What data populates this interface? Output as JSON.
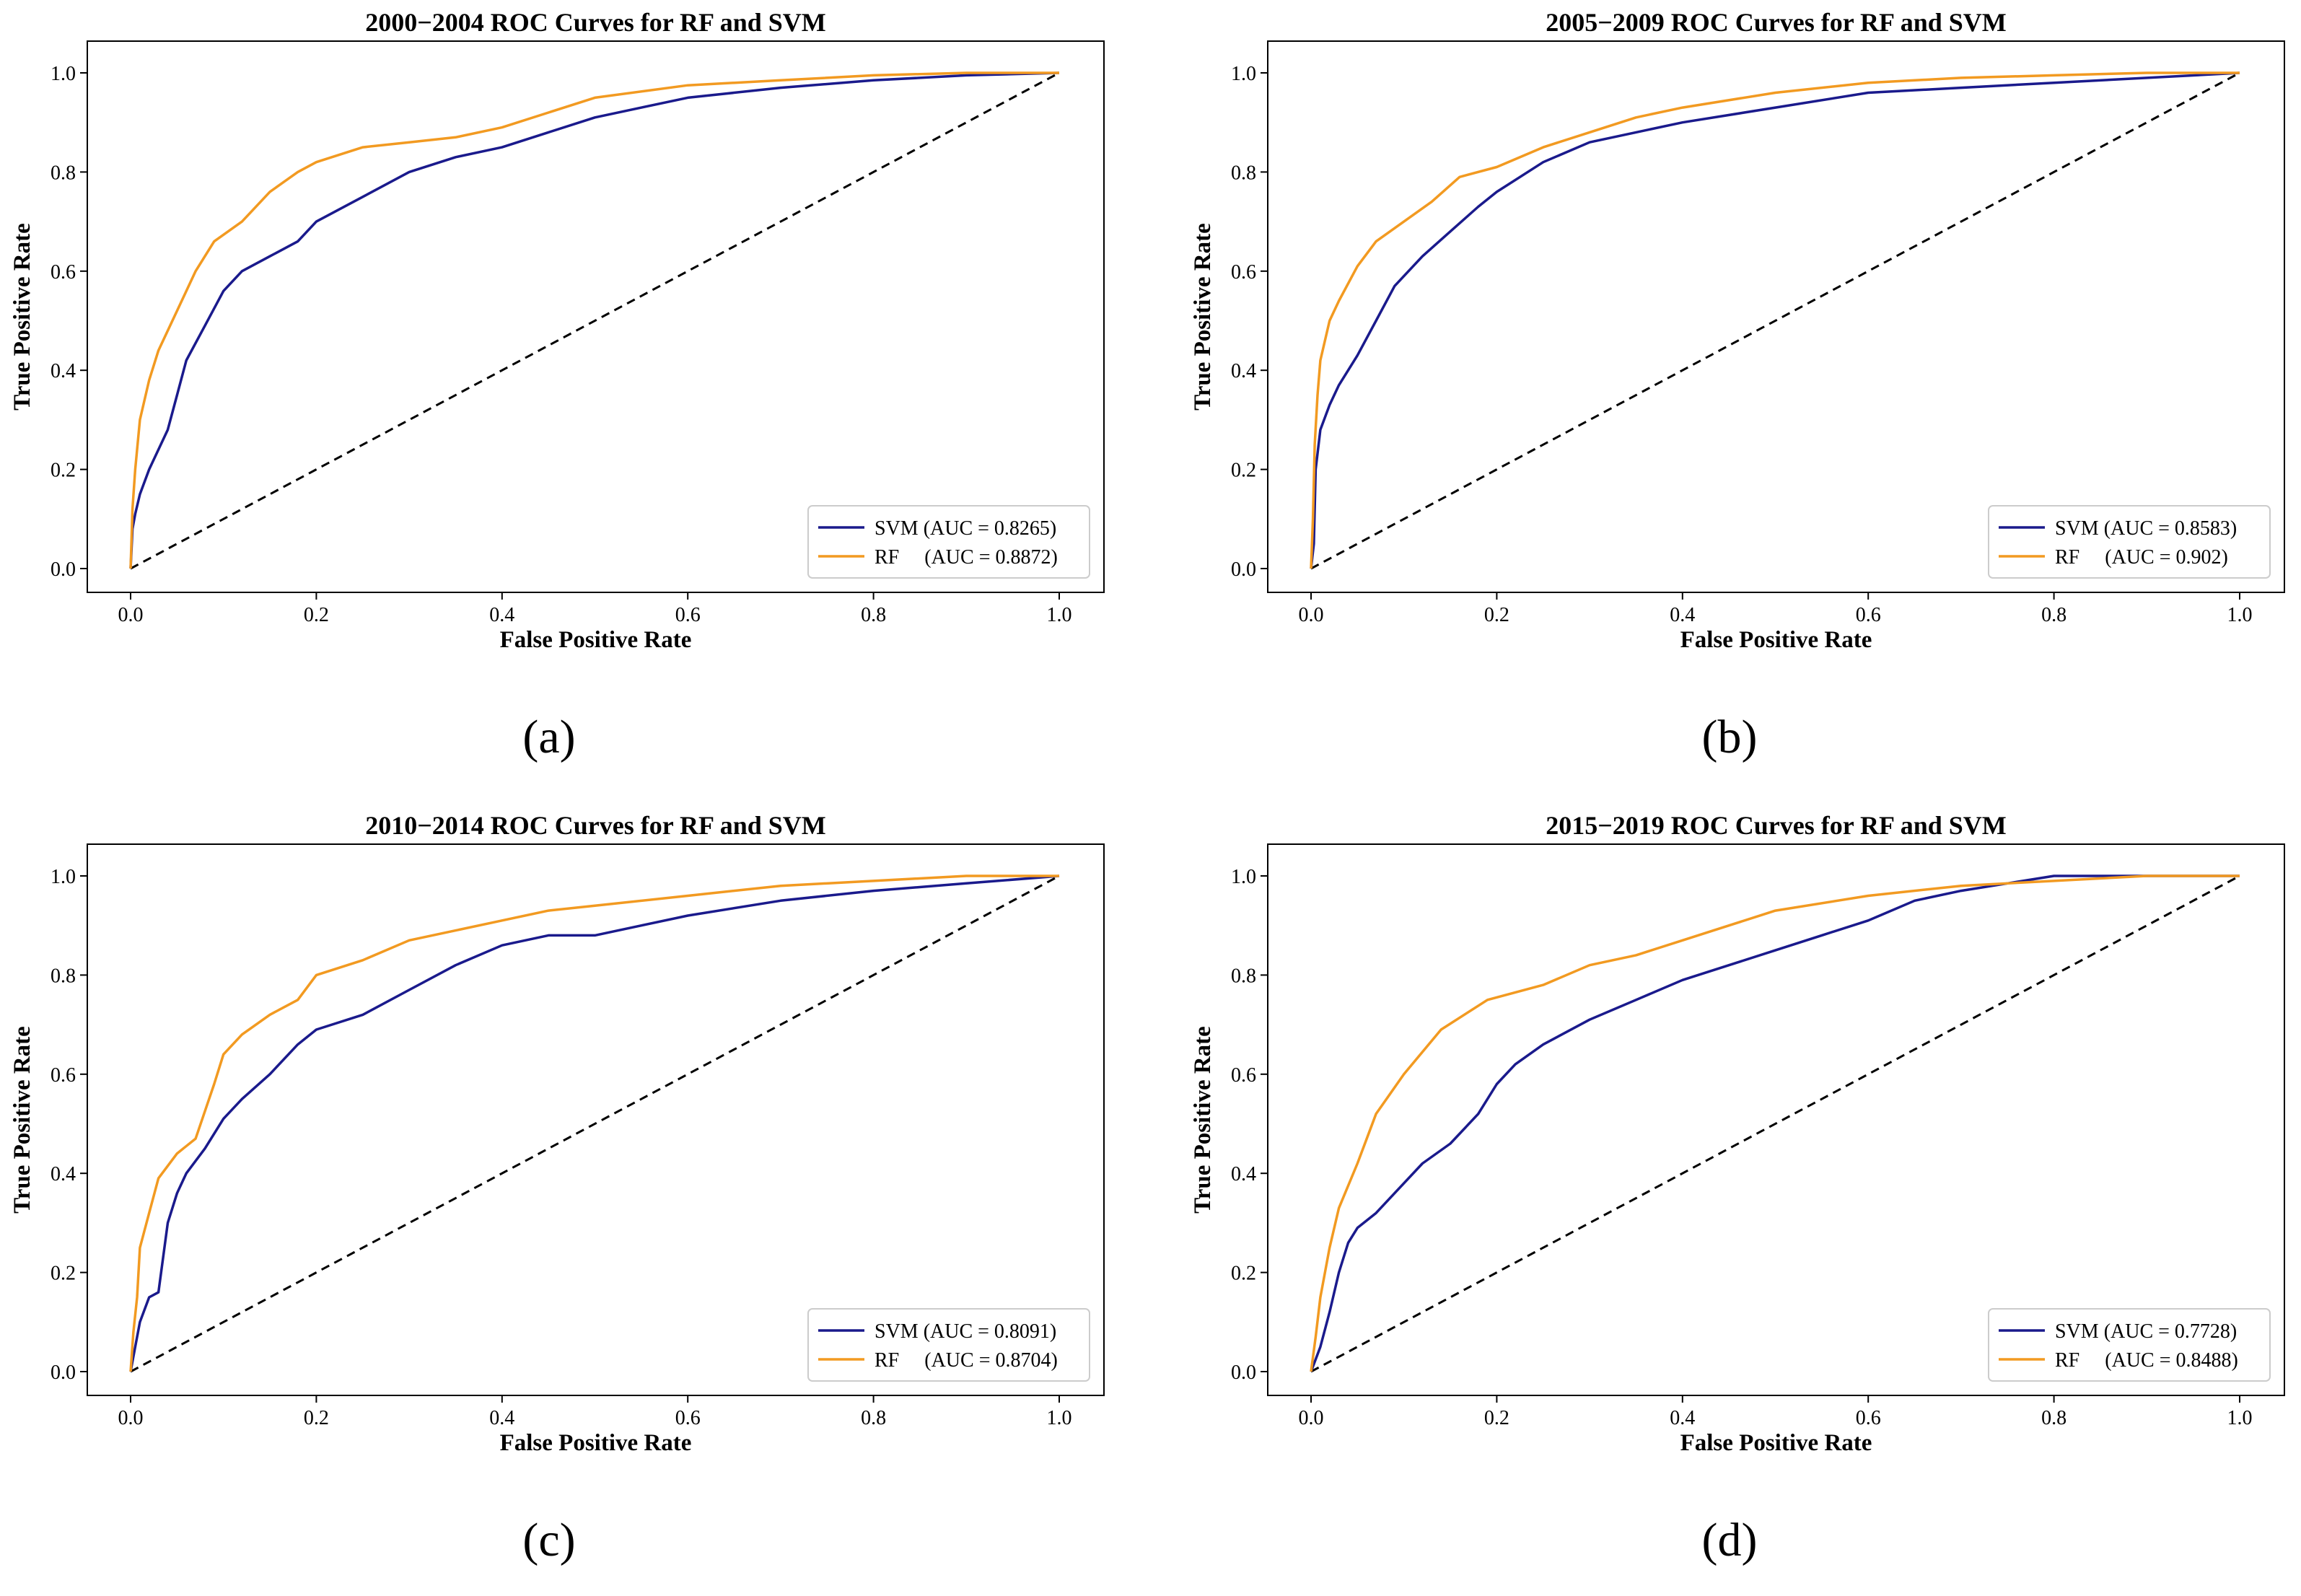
{
  "colors": {
    "svm": "#1a1a8c",
    "rf": "#f29a21",
    "chance": "#000000"
  },
  "chart_data": [
    {
      "type": "line",
      "caption": "(a)",
      "title": "2000−2004 ROC Curves for RF and SVM",
      "xlabel": "False Positive Rate",
      "ylabel": "True Positive Rate",
      "xlim": [
        0,
        1
      ],
      "ylim": [
        0,
        1
      ],
      "xticks": [
        "0.0",
        "0.2",
        "0.4",
        "0.6",
        "0.8",
        "1.0"
      ],
      "yticks": [
        "0.0",
        "0.2",
        "0.4",
        "0.6",
        "0.8",
        "1.0"
      ],
      "legend_position": "lower-right",
      "series": [
        {
          "name": "SVM",
          "legend_label": "SVM (AUC = 0.8265)",
          "auc": 0.8265,
          "x": [
            0,
            0.002,
            0.005,
            0.01,
            0.02,
            0.03,
            0.04,
            0.05,
            0.06,
            0.08,
            0.1,
            0.12,
            0.15,
            0.18,
            0.2,
            0.25,
            0.3,
            0.35,
            0.4,
            0.45,
            0.5,
            0.55,
            0.6,
            0.7,
            0.8,
            0.9,
            1.0
          ],
          "y": [
            0,
            0.08,
            0.11,
            0.15,
            0.2,
            0.24,
            0.28,
            0.35,
            0.42,
            0.49,
            0.56,
            0.6,
            0.63,
            0.66,
            0.7,
            0.75,
            0.8,
            0.83,
            0.85,
            0.88,
            0.91,
            0.93,
            0.95,
            0.97,
            0.985,
            0.995,
            1.0
          ]
        },
        {
          "name": "RF",
          "legend_label": "RF     (AUC = 0.8872)",
          "auc": 0.8872,
          "x": [
            0,
            0.002,
            0.005,
            0.01,
            0.02,
            0.03,
            0.05,
            0.07,
            0.09,
            0.12,
            0.15,
            0.18,
            0.2,
            0.25,
            0.3,
            0.35,
            0.4,
            0.45,
            0.5,
            0.6,
            0.7,
            0.8,
            0.9,
            1.0
          ],
          "y": [
            0,
            0.12,
            0.2,
            0.3,
            0.38,
            0.44,
            0.52,
            0.6,
            0.66,
            0.7,
            0.76,
            0.8,
            0.82,
            0.85,
            0.86,
            0.87,
            0.89,
            0.92,
            0.95,
            0.975,
            0.985,
            0.995,
            1.0,
            1.0
          ]
        }
      ]
    },
    {
      "type": "line",
      "caption": "(b)",
      "title": "2005−2009 ROC Curves for RF and SVM",
      "xlabel": "False Positive Rate",
      "ylabel": "True Positive Rate",
      "xlim": [
        0,
        1
      ],
      "ylim": [
        0,
        1
      ],
      "xticks": [
        "0.0",
        "0.2",
        "0.4",
        "0.6",
        "0.8",
        "1.0"
      ],
      "yticks": [
        "0.0",
        "0.2",
        "0.4",
        "0.6",
        "0.8",
        "1.0"
      ],
      "legend_position": "lower-right",
      "series": [
        {
          "name": "SVM",
          "legend_label": "SVM (AUC = 0.8583)",
          "auc": 0.8583,
          "x": [
            0,
            0.003,
            0.005,
            0.01,
            0.02,
            0.03,
            0.05,
            0.07,
            0.09,
            0.12,
            0.15,
            0.18,
            0.2,
            0.25,
            0.3,
            0.35,
            0.4,
            0.5,
            0.6,
            0.7,
            0.8,
            0.9,
            1.0
          ],
          "y": [
            0,
            0.05,
            0.2,
            0.28,
            0.33,
            0.37,
            0.43,
            0.5,
            0.57,
            0.63,
            0.68,
            0.73,
            0.76,
            0.82,
            0.86,
            0.88,
            0.9,
            0.93,
            0.96,
            0.97,
            0.98,
            0.99,
            1.0
          ]
        },
        {
          "name": "RF",
          "legend_label": "RF     (AUC = 0.902)",
          "auc": 0.902,
          "x": [
            0,
            0.002,
            0.004,
            0.007,
            0.01,
            0.02,
            0.03,
            0.05,
            0.07,
            0.1,
            0.13,
            0.16,
            0.2,
            0.25,
            0.3,
            0.35,
            0.4,
            0.5,
            0.6,
            0.7,
            0.8,
            0.9,
            1.0
          ],
          "y": [
            0,
            0.1,
            0.25,
            0.35,
            0.42,
            0.5,
            0.54,
            0.61,
            0.66,
            0.7,
            0.74,
            0.79,
            0.81,
            0.85,
            0.88,
            0.91,
            0.93,
            0.96,
            0.98,
            0.99,
            0.995,
            1.0,
            1.0
          ]
        }
      ]
    },
    {
      "type": "line",
      "caption": "(c)",
      "title": "2010−2014 ROC Curves for RF and SVM",
      "xlabel": "False Positive Rate",
      "ylabel": "True Positive Rate",
      "xlim": [
        0,
        1
      ],
      "ylim": [
        0,
        1
      ],
      "xticks": [
        "0.0",
        "0.2",
        "0.4",
        "0.6",
        "0.8",
        "1.0"
      ],
      "yticks": [
        "0.0",
        "0.2",
        "0.4",
        "0.6",
        "0.8",
        "1.0"
      ],
      "legend_position": "lower-right",
      "series": [
        {
          "name": "SVM",
          "legend_label": "SVM (AUC = 0.8091)",
          "auc": 0.8091,
          "x": [
            0,
            0.005,
            0.01,
            0.02,
            0.03,
            0.04,
            0.05,
            0.06,
            0.08,
            0.1,
            0.12,
            0.15,
            0.18,
            0.2,
            0.25,
            0.3,
            0.35,
            0.4,
            0.45,
            0.5,
            0.55,
            0.6,
            0.7,
            0.8,
            0.9,
            1.0
          ],
          "y": [
            0,
            0.05,
            0.1,
            0.15,
            0.16,
            0.3,
            0.36,
            0.4,
            0.45,
            0.51,
            0.55,
            0.6,
            0.66,
            0.69,
            0.72,
            0.77,
            0.82,
            0.86,
            0.88,
            0.88,
            0.9,
            0.92,
            0.95,
            0.97,
            0.985,
            1.0
          ]
        },
        {
          "name": "RF",
          "legend_label": "RF     (AUC = 0.8704)",
          "auc": 0.8704,
          "x": [
            0,
            0.003,
            0.007,
            0.01,
            0.02,
            0.03,
            0.05,
            0.07,
            0.09,
            0.1,
            0.12,
            0.15,
            0.18,
            0.2,
            0.25,
            0.3,
            0.35,
            0.4,
            0.45,
            0.5,
            0.6,
            0.7,
            0.8,
            0.9,
            1.0
          ],
          "y": [
            0,
            0.08,
            0.15,
            0.25,
            0.32,
            0.39,
            0.44,
            0.47,
            0.58,
            0.64,
            0.68,
            0.72,
            0.75,
            0.8,
            0.83,
            0.87,
            0.89,
            0.91,
            0.93,
            0.94,
            0.96,
            0.98,
            0.99,
            1.0,
            1.0
          ]
        }
      ]
    },
    {
      "type": "line",
      "caption": "(d)",
      "title": "2015−2019 ROC Curves for RF and SVM",
      "xlabel": "False Positive Rate",
      "ylabel": "True Positive Rate",
      "xlim": [
        0,
        1
      ],
      "ylim": [
        0,
        1
      ],
      "xticks": [
        "0.0",
        "0.2",
        "0.4",
        "0.6",
        "0.8",
        "1.0"
      ],
      "yticks": [
        "0.0",
        "0.2",
        "0.4",
        "0.6",
        "0.8",
        "1.0"
      ],
      "legend_position": "lower-right",
      "series": [
        {
          "name": "SVM",
          "legend_label": "SVM (AUC = 0.7728)",
          "auc": 0.7728,
          "x": [
            0,
            0.01,
            0.02,
            0.03,
            0.04,
            0.05,
            0.07,
            0.1,
            0.12,
            0.15,
            0.18,
            0.2,
            0.22,
            0.25,
            0.3,
            0.35,
            0.4,
            0.45,
            0.5,
            0.55,
            0.6,
            0.65,
            0.7,
            0.75,
            0.8,
            1.0
          ],
          "y": [
            0,
            0.05,
            0.12,
            0.2,
            0.26,
            0.29,
            0.32,
            0.38,
            0.42,
            0.46,
            0.52,
            0.58,
            0.62,
            0.66,
            0.71,
            0.75,
            0.79,
            0.82,
            0.85,
            0.88,
            0.91,
            0.95,
            0.97,
            0.985,
            1.0,
            1.0
          ]
        },
        {
          "name": "RF",
          "legend_label": "RF     (AUC = 0.8488)",
          "auc": 0.8488,
          "x": [
            0,
            0.005,
            0.01,
            0.02,
            0.03,
            0.05,
            0.07,
            0.1,
            0.14,
            0.19,
            0.25,
            0.3,
            0.35,
            0.4,
            0.45,
            0.5,
            0.6,
            0.7,
            0.8,
            0.9,
            1.0
          ],
          "y": [
            0,
            0.07,
            0.15,
            0.25,
            0.33,
            0.42,
            0.52,
            0.6,
            0.69,
            0.75,
            0.78,
            0.82,
            0.84,
            0.87,
            0.9,
            0.93,
            0.96,
            0.98,
            0.99,
            1.0,
            1.0
          ]
        }
      ]
    }
  ]
}
